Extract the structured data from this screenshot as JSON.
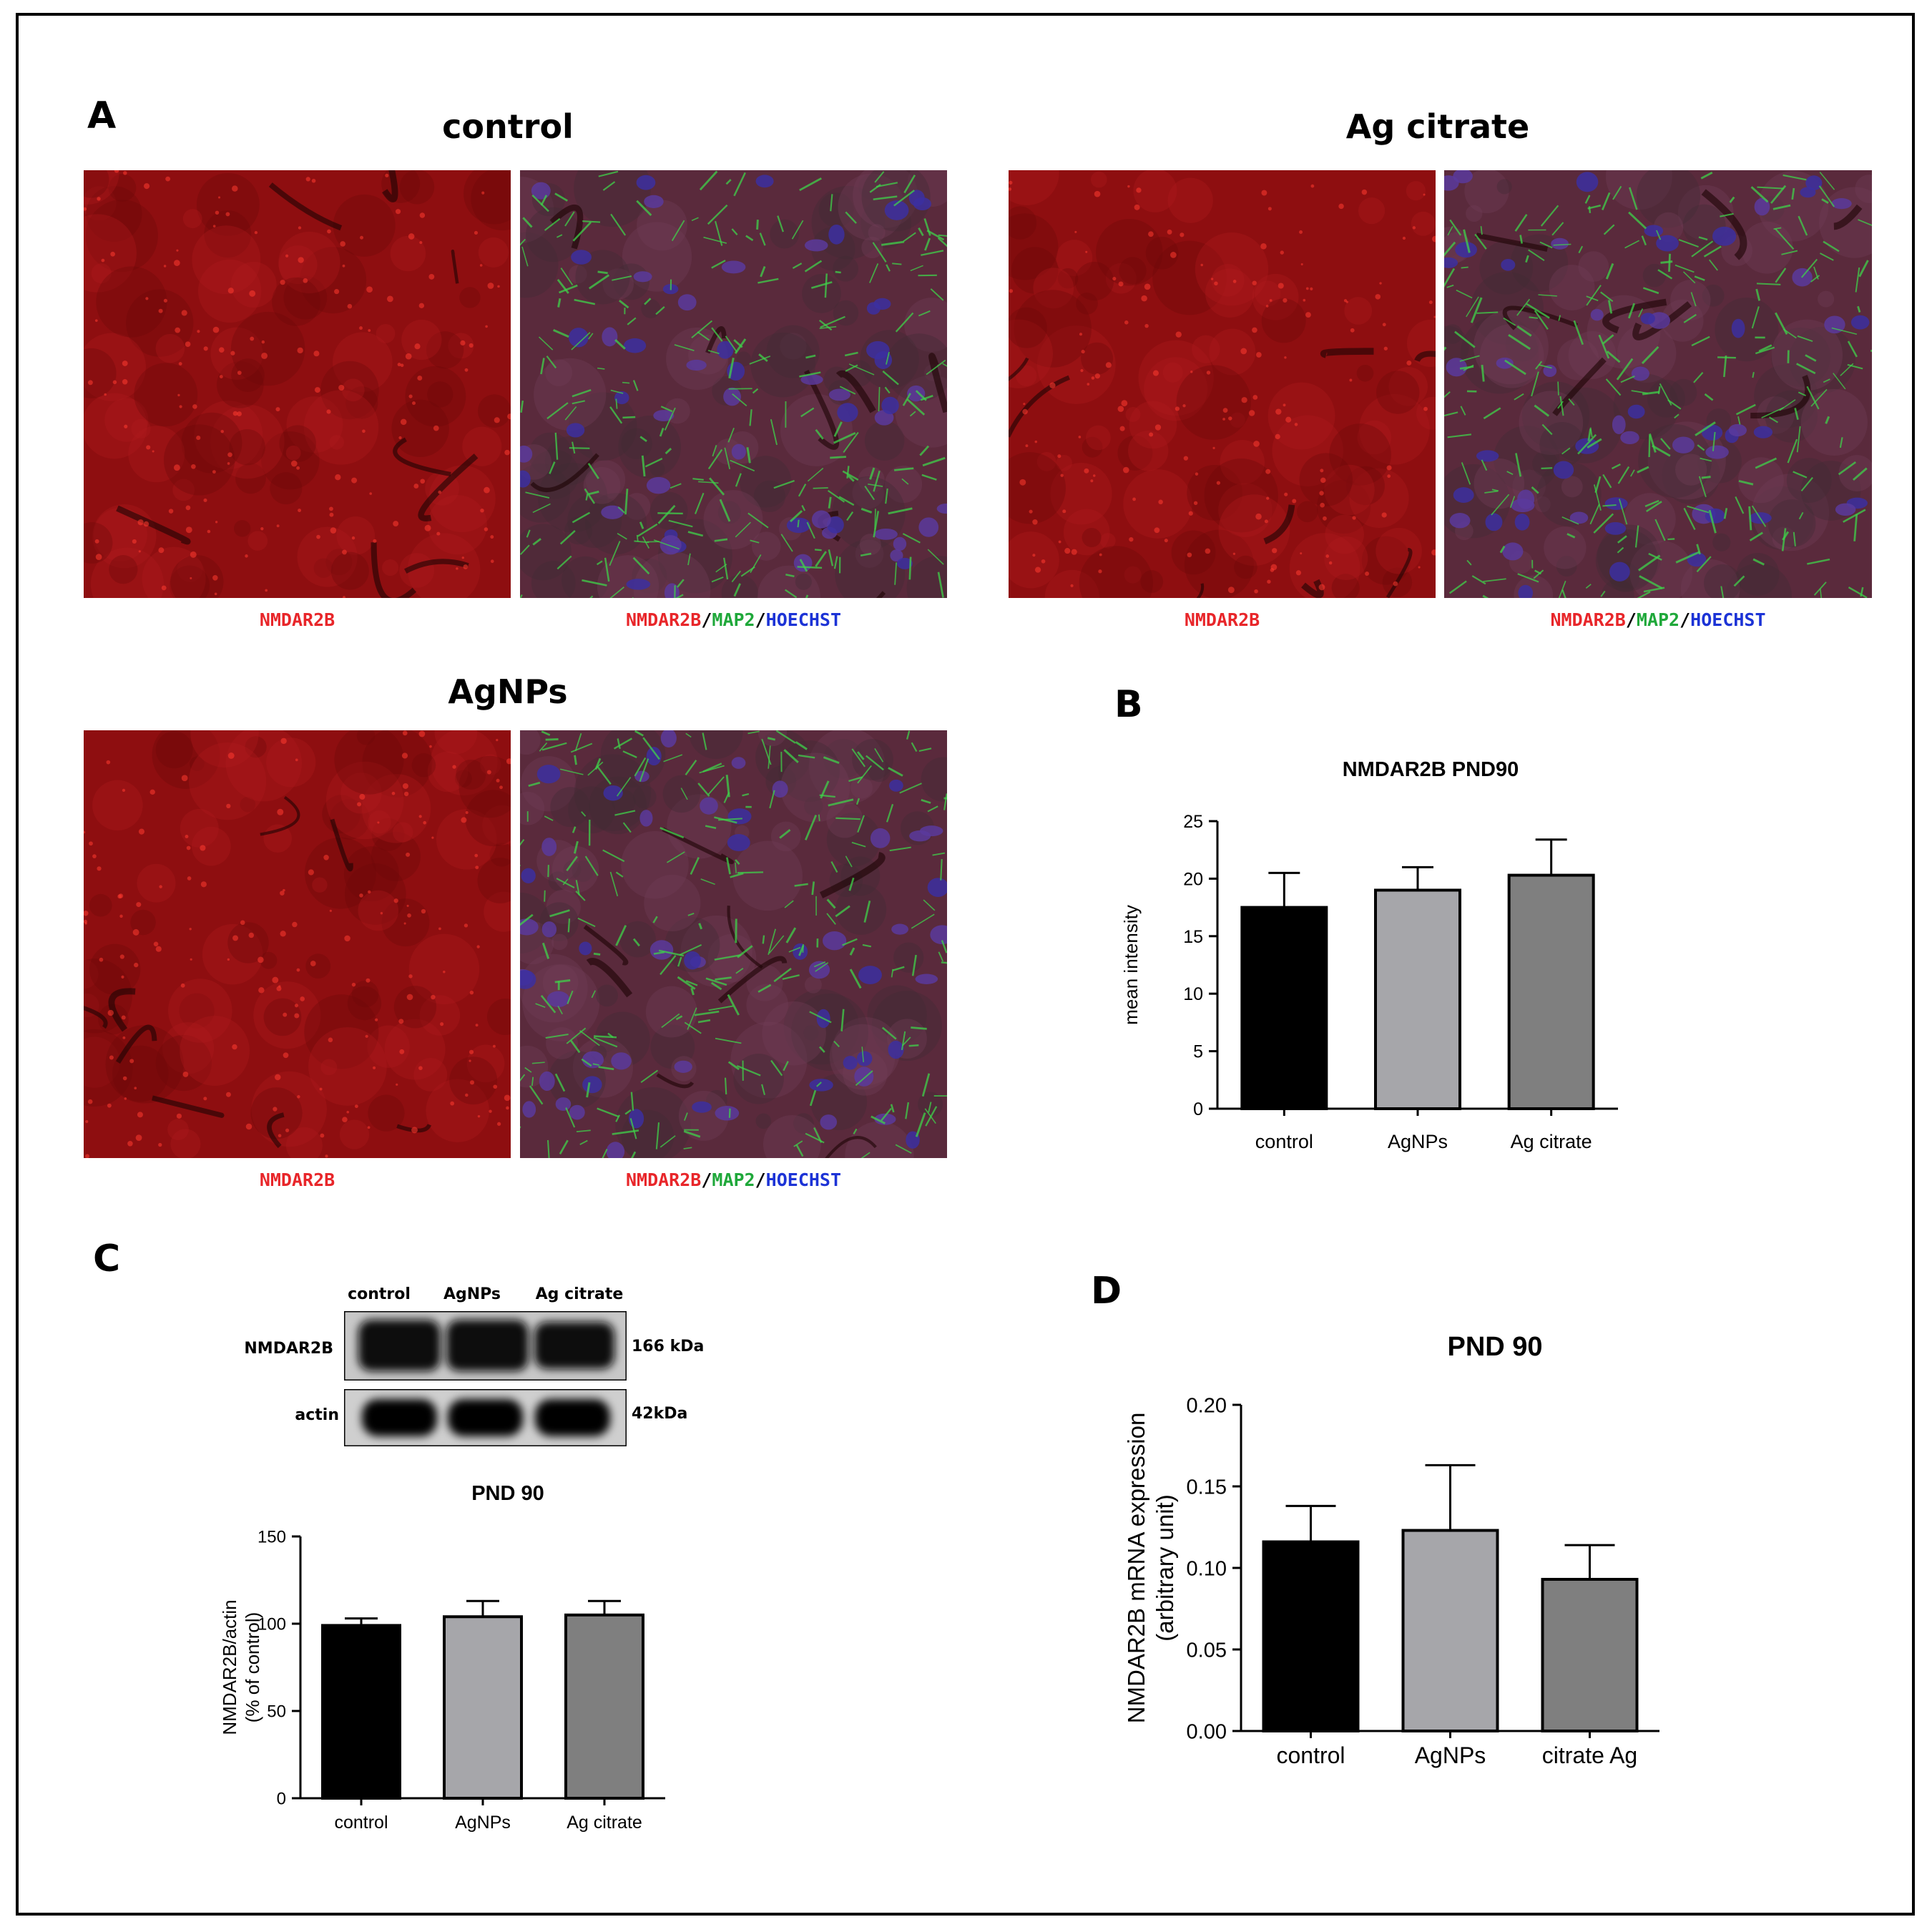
{
  "panel_letters": {
    "a": "A",
    "b": "B",
    "c": "C",
    "d": "D"
  },
  "group_titles": {
    "control": "control",
    "ag_citrate": "Ag citrate",
    "agnps": "AgNPs"
  },
  "captions": {
    "single": "NMDAR2B",
    "merge_parts": [
      "NMDAR2B",
      "/",
      "MAP2",
      "/",
      "HOECHST"
    ]
  },
  "colors": {
    "red_channel": "#e8262a",
    "green_channel": "#1fa83a",
    "blue_channel": "#1c33d6",
    "bar_control": "#000000",
    "bar_agnps": "#a6a6aa",
    "bar_ag_citrate": "#7f7f7f"
  },
  "western_blot": {
    "lanes": [
      "control",
      "AgNPs",
      "Ag citrate"
    ],
    "rows": [
      {
        "label": "NMDAR2B",
        "size": "166 kDa"
      },
      {
        "label": "actin",
        "size": "42kDa"
      }
    ]
  },
  "chart_data": [
    {
      "id": "B",
      "type": "bar",
      "title": "NMDAR2B  PND90",
      "xlabel": "",
      "ylabel": "mean intensity",
      "categories": [
        "control",
        "AgNPs",
        "Ag citrate"
      ],
      "values": [
        17.5,
        19.0,
        20.3
      ],
      "errors": [
        3.0,
        2.0,
        3.1
      ],
      "ylim": [
        0,
        25
      ],
      "yticks": [
        0,
        5,
        10,
        15,
        20,
        25
      ],
      "ytick_labels": [
        "0",
        "5",
        "10",
        "15",
        "20",
        "25"
      ]
    },
    {
      "id": "C",
      "type": "bar",
      "title": "PND 90",
      "xlabel": "",
      "ylabel": [
        "NMDAR2B/actin",
        "(% of control)"
      ],
      "categories": [
        "control",
        "AgNPs",
        "Ag citrate"
      ],
      "values": [
        99,
        104,
        105
      ],
      "errors": [
        4,
        9,
        8
      ],
      "ylim": [
        0,
        150
      ],
      "yticks": [
        0,
        50,
        100,
        150
      ],
      "ytick_labels": [
        "0",
        "50",
        "100",
        "150"
      ]
    },
    {
      "id": "D",
      "type": "bar",
      "title": "PND 90",
      "xlabel": "",
      "ylabel": [
        "NMDAR2B mRNA expression",
        "(arbitrary unit)"
      ],
      "categories": [
        "control",
        "AgNPs",
        "citrate Ag"
      ],
      "values": [
        0.116,
        0.123,
        0.093
      ],
      "errors": [
        0.022,
        0.04,
        0.021
      ],
      "ylim": [
        0,
        0.2
      ],
      "yticks": [
        0,
        0.05,
        0.1,
        0.15,
        0.2
      ],
      "ytick_labels": [
        "0.00",
        "0.05",
        "0.10",
        "0.15",
        "0.20"
      ]
    }
  ]
}
